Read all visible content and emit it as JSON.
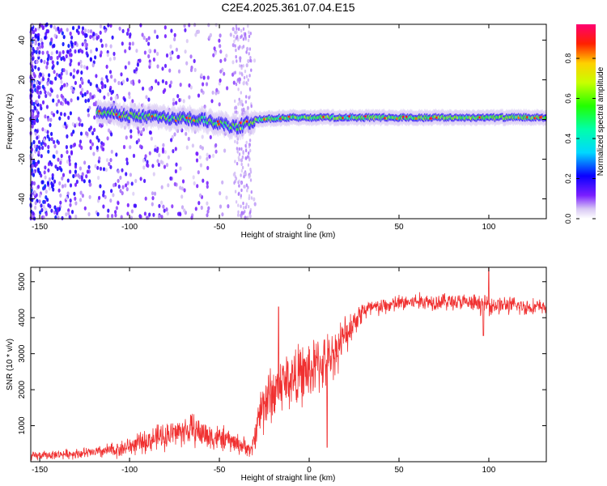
{
  "title": "C2E4.2025.361.07.04.E15",
  "chart_data": [
    {
      "type": "heatmap",
      "title": "C2E4.2025.361.07.04.E15",
      "xlabel": "Height of straight line (km)",
      "ylabel": "Frequency (Hz)",
      "xlim": [
        -155,
        132
      ],
      "ylim": [
        -50,
        48
      ],
      "xticks": [
        -150,
        -100,
        -50,
        0,
        50,
        100
      ],
      "yticks": [
        -40,
        -20,
        0,
        20,
        40
      ],
      "colorbar": {
        "label": "Normalized spectral amplitude",
        "range": [
          0,
          0.97
        ],
        "ticks": [
          0,
          0.2,
          0.4,
          0.6,
          0.8
        ],
        "tick_labels": [
          "0.0",
          "0.2",
          "0.4",
          "0.6",
          "0.8"
        ]
      },
      "ridge_points": [
        {
          "x": -115,
          "y": 4
        },
        {
          "x": -100,
          "y": 2
        },
        {
          "x": -80,
          "y": 1
        },
        {
          "x": -60,
          "y": 0
        },
        {
          "x": -40,
          "y": -4
        },
        {
          "x": -30,
          "y": 0
        },
        {
          "x": -10,
          "y": 1
        },
        {
          "x": 0,
          "y": 1
        },
        {
          "x": 20,
          "y": 1
        },
        {
          "x": 50,
          "y": 1
        },
        {
          "x": 80,
          "y": 1
        },
        {
          "x": 100,
          "y": 1
        },
        {
          "x": 130,
          "y": 1
        }
      ],
      "noise_band": {
        "x_range": [
          -155,
          -30
        ],
        "y_range": [
          -50,
          48
        ]
      }
    },
    {
      "type": "line",
      "xlabel": "Height of straight line (km)",
      "ylabel": "SNR (10 * v/v)",
      "xlim": [
        -155,
        132
      ],
      "ylim": [
        0,
        5400
      ],
      "xticks": [
        -150,
        -100,
        -50,
        0,
        50,
        100
      ],
      "yticks": [
        1000,
        2000,
        3000,
        4000,
        5000
      ],
      "series": [
        {
          "name": "SNR",
          "color": "#f03030",
          "x": [
            -155,
            -140,
            -120,
            -105,
            -95,
            -85,
            -75,
            -65,
            -55,
            -45,
            -40,
            -35,
            -32,
            -28,
            -25,
            -20,
            -15,
            -10,
            -5,
            0,
            5,
            10,
            15,
            20,
            25,
            30,
            40,
            50,
            60,
            70,
            80,
            90,
            100,
            110,
            120,
            132
          ],
          "values": [
            150,
            200,
            250,
            350,
            500,
            650,
            800,
            900,
            700,
            600,
            500,
            400,
            300,
            1300,
            1700,
            1900,
            2200,
            2300,
            2400,
            2500,
            2700,
            2800,
            3100,
            3500,
            3900,
            4200,
            4300,
            4400,
            4450,
            4450,
            4450,
            4400,
            4350,
            4350,
            4300,
            4300
          ],
          "noise_amplitude": [
            150,
            150,
            200,
            300,
            350,
            450,
            500,
            550,
            500,
            400,
            350,
            300,
            250,
            800,
            1100,
            1000,
            1000,
            1100,
            1000,
            1100,
            1000,
            900,
            800,
            700,
            500,
            400,
            300,
            300,
            300,
            300,
            300,
            300,
            350,
            300,
            300,
            250
          ],
          "spikes": [
            {
              "x": -17,
              "y": 4300
            },
            {
              "x": 10,
              "y": 400
            },
            {
              "x": 100,
              "y": 5400
            },
            {
              "x": 97,
              "y": 3500
            }
          ]
        }
      ]
    }
  ]
}
